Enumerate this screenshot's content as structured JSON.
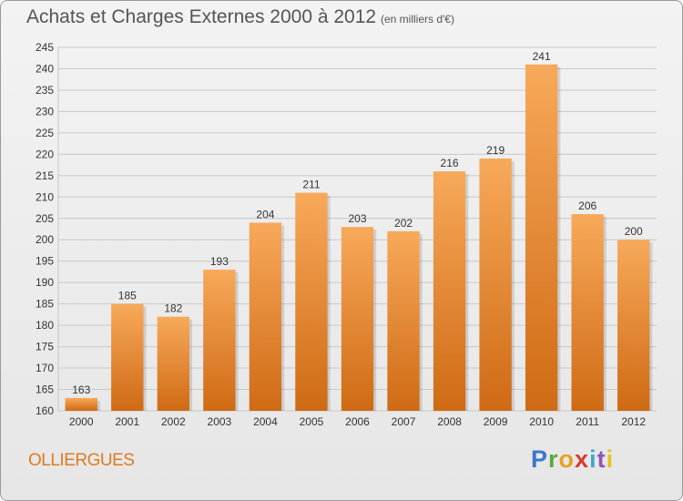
{
  "header": {
    "title": "Achats et Charges Externes 2000 à 2012",
    "subtitle": "(en milliers d'€)"
  },
  "footer": {
    "city": "OLLIERGUES",
    "logo": {
      "p": "P",
      "r": "r",
      "o": "o",
      "x": "x",
      "i1": "i",
      "t": "t",
      "i2": "i"
    }
  },
  "colors": {
    "bar_top": "#f7a95a",
    "bar_bottom": "#cf6a14",
    "grid": "#c8c8c8"
  },
  "chart_data": {
    "type": "bar",
    "title": "Achats et Charges Externes 2000 à 2012",
    "subtitle": "(en milliers d'€)",
    "categories": [
      "2000",
      "2001",
      "2002",
      "2003",
      "2004",
      "2005",
      "2006",
      "2007",
      "2008",
      "2009",
      "2010",
      "2011",
      "2012"
    ],
    "values": [
      163,
      185,
      182,
      193,
      204,
      211,
      203,
      202,
      216,
      219,
      241,
      206,
      200
    ],
    "ylim": [
      160,
      245
    ],
    "yticks": [
      160,
      165,
      170,
      175,
      180,
      185,
      190,
      195,
      200,
      205,
      210,
      215,
      220,
      225,
      230,
      235,
      240,
      245
    ],
    "grid": true
  }
}
